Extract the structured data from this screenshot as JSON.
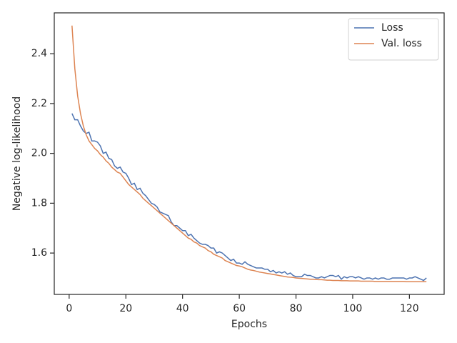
{
  "chart_data": {
    "type": "line",
    "xlabel": "Epochs",
    "ylabel": "Negative log-likelihood",
    "x": [
      1,
      2,
      3,
      4,
      5,
      6,
      7,
      8,
      9,
      10,
      11,
      12,
      13,
      14,
      15,
      16,
      17,
      18,
      19,
      20,
      21,
      22,
      23,
      24,
      25,
      26,
      27,
      28,
      29,
      30,
      31,
      32,
      33,
      34,
      35,
      36,
      37,
      38,
      39,
      40,
      41,
      42,
      43,
      44,
      45,
      46,
      47,
      48,
      49,
      50,
      51,
      52,
      53,
      54,
      55,
      56,
      57,
      58,
      59,
      60,
      61,
      62,
      63,
      64,
      65,
      66,
      67,
      68,
      69,
      70,
      71,
      72,
      73,
      74,
      75,
      76,
      77,
      78,
      79,
      80,
      81,
      82,
      83,
      84,
      85,
      86,
      87,
      88,
      89,
      90,
      91,
      92,
      93,
      94,
      95,
      96,
      97,
      98,
      99,
      100,
      101,
      102,
      103,
      104,
      105,
      106,
      107,
      108,
      109,
      110,
      111,
      112,
      113,
      114,
      115,
      116,
      117,
      118,
      119,
      120,
      121,
      122,
      123,
      124,
      125,
      126
    ],
    "series": [
      {
        "name": "Loss",
        "color": "#4c72b0",
        "values": [
          2.16,
          2.135,
          2.135,
          2.11,
          2.09,
          2.08,
          2.085,
          2.05,
          2.05,
          2.045,
          2.03,
          2.0,
          2.005,
          1.98,
          1.975,
          1.95,
          1.94,
          1.945,
          1.925,
          1.92,
          1.9,
          1.875,
          1.88,
          1.855,
          1.86,
          1.84,
          1.83,
          1.815,
          1.8,
          1.795,
          1.785,
          1.765,
          1.76,
          1.755,
          1.75,
          1.725,
          1.71,
          1.71,
          1.7,
          1.69,
          1.69,
          1.67,
          1.675,
          1.66,
          1.65,
          1.64,
          1.635,
          1.635,
          1.63,
          1.62,
          1.62,
          1.6,
          1.605,
          1.6,
          1.59,
          1.58,
          1.57,
          1.575,
          1.56,
          1.56,
          1.555,
          1.565,
          1.555,
          1.55,
          1.545,
          1.54,
          1.54,
          1.54,
          1.535,
          1.535,
          1.525,
          1.53,
          1.52,
          1.525,
          1.52,
          1.525,
          1.515,
          1.52,
          1.51,
          1.505,
          1.505,
          1.505,
          1.515,
          1.51,
          1.51,
          1.505,
          1.5,
          1.5,
          1.505,
          1.5,
          1.505,
          1.51,
          1.51,
          1.505,
          1.51,
          1.495,
          1.505,
          1.5,
          1.505,
          1.505,
          1.5,
          1.505,
          1.5,
          1.495,
          1.5,
          1.5,
          1.495,
          1.5,
          1.495,
          1.5,
          1.5,
          1.495,
          1.495,
          1.5,
          1.5,
          1.5,
          1.5,
          1.5,
          1.495,
          1.5,
          1.5,
          1.505,
          1.5,
          1.495,
          1.49,
          1.5
        ]
      },
      {
        "name": "Val. loss",
        "color": "#dd8452",
        "values": [
          2.513,
          2.34,
          2.23,
          2.16,
          2.11,
          2.075,
          2.05,
          2.035,
          2.02,
          2.01,
          1.995,
          1.985,
          1.97,
          1.96,
          1.945,
          1.935,
          1.925,
          1.92,
          1.905,
          1.89,
          1.875,
          1.865,
          1.855,
          1.845,
          1.835,
          1.82,
          1.81,
          1.8,
          1.79,
          1.78,
          1.77,
          1.76,
          1.75,
          1.74,
          1.73,
          1.72,
          1.71,
          1.7,
          1.69,
          1.68,
          1.67,
          1.66,
          1.655,
          1.645,
          1.64,
          1.63,
          1.625,
          1.62,
          1.61,
          1.605,
          1.595,
          1.59,
          1.585,
          1.58,
          1.57,
          1.565,
          1.56,
          1.555,
          1.55,
          1.548,
          1.545,
          1.54,
          1.535,
          1.532,
          1.53,
          1.527,
          1.524,
          1.522,
          1.52,
          1.518,
          1.516,
          1.514,
          1.512,
          1.51,
          1.508,
          1.506,
          1.504,
          1.503,
          1.502,
          1.5,
          1.499,
          1.498,
          1.497,
          1.496,
          1.495,
          1.495,
          1.494,
          1.493,
          1.493,
          1.492,
          1.491,
          1.491,
          1.49,
          1.49,
          1.49,
          1.489,
          1.489,
          1.489,
          1.488,
          1.488,
          1.488,
          1.488,
          1.487,
          1.487,
          1.487,
          1.487,
          1.487,
          1.486,
          1.486,
          1.486,
          1.486,
          1.486,
          1.486,
          1.486,
          1.486,
          1.486,
          1.486,
          1.486,
          1.485,
          1.485,
          1.485,
          1.485,
          1.485,
          1.485,
          1.485,
          1.485
        ]
      }
    ],
    "xlim": [
      -5.25,
      132.25
    ],
    "ylim": [
      1.434,
      2.564
    ],
    "xticks": [
      0,
      20,
      40,
      60,
      80,
      100,
      120
    ],
    "yticks": [
      1.6,
      1.8,
      {
        "value": 2,
        "label": "2.0"
      },
      2.2,
      2.4
    ],
    "grid": false,
    "legend": "upper right"
  }
}
